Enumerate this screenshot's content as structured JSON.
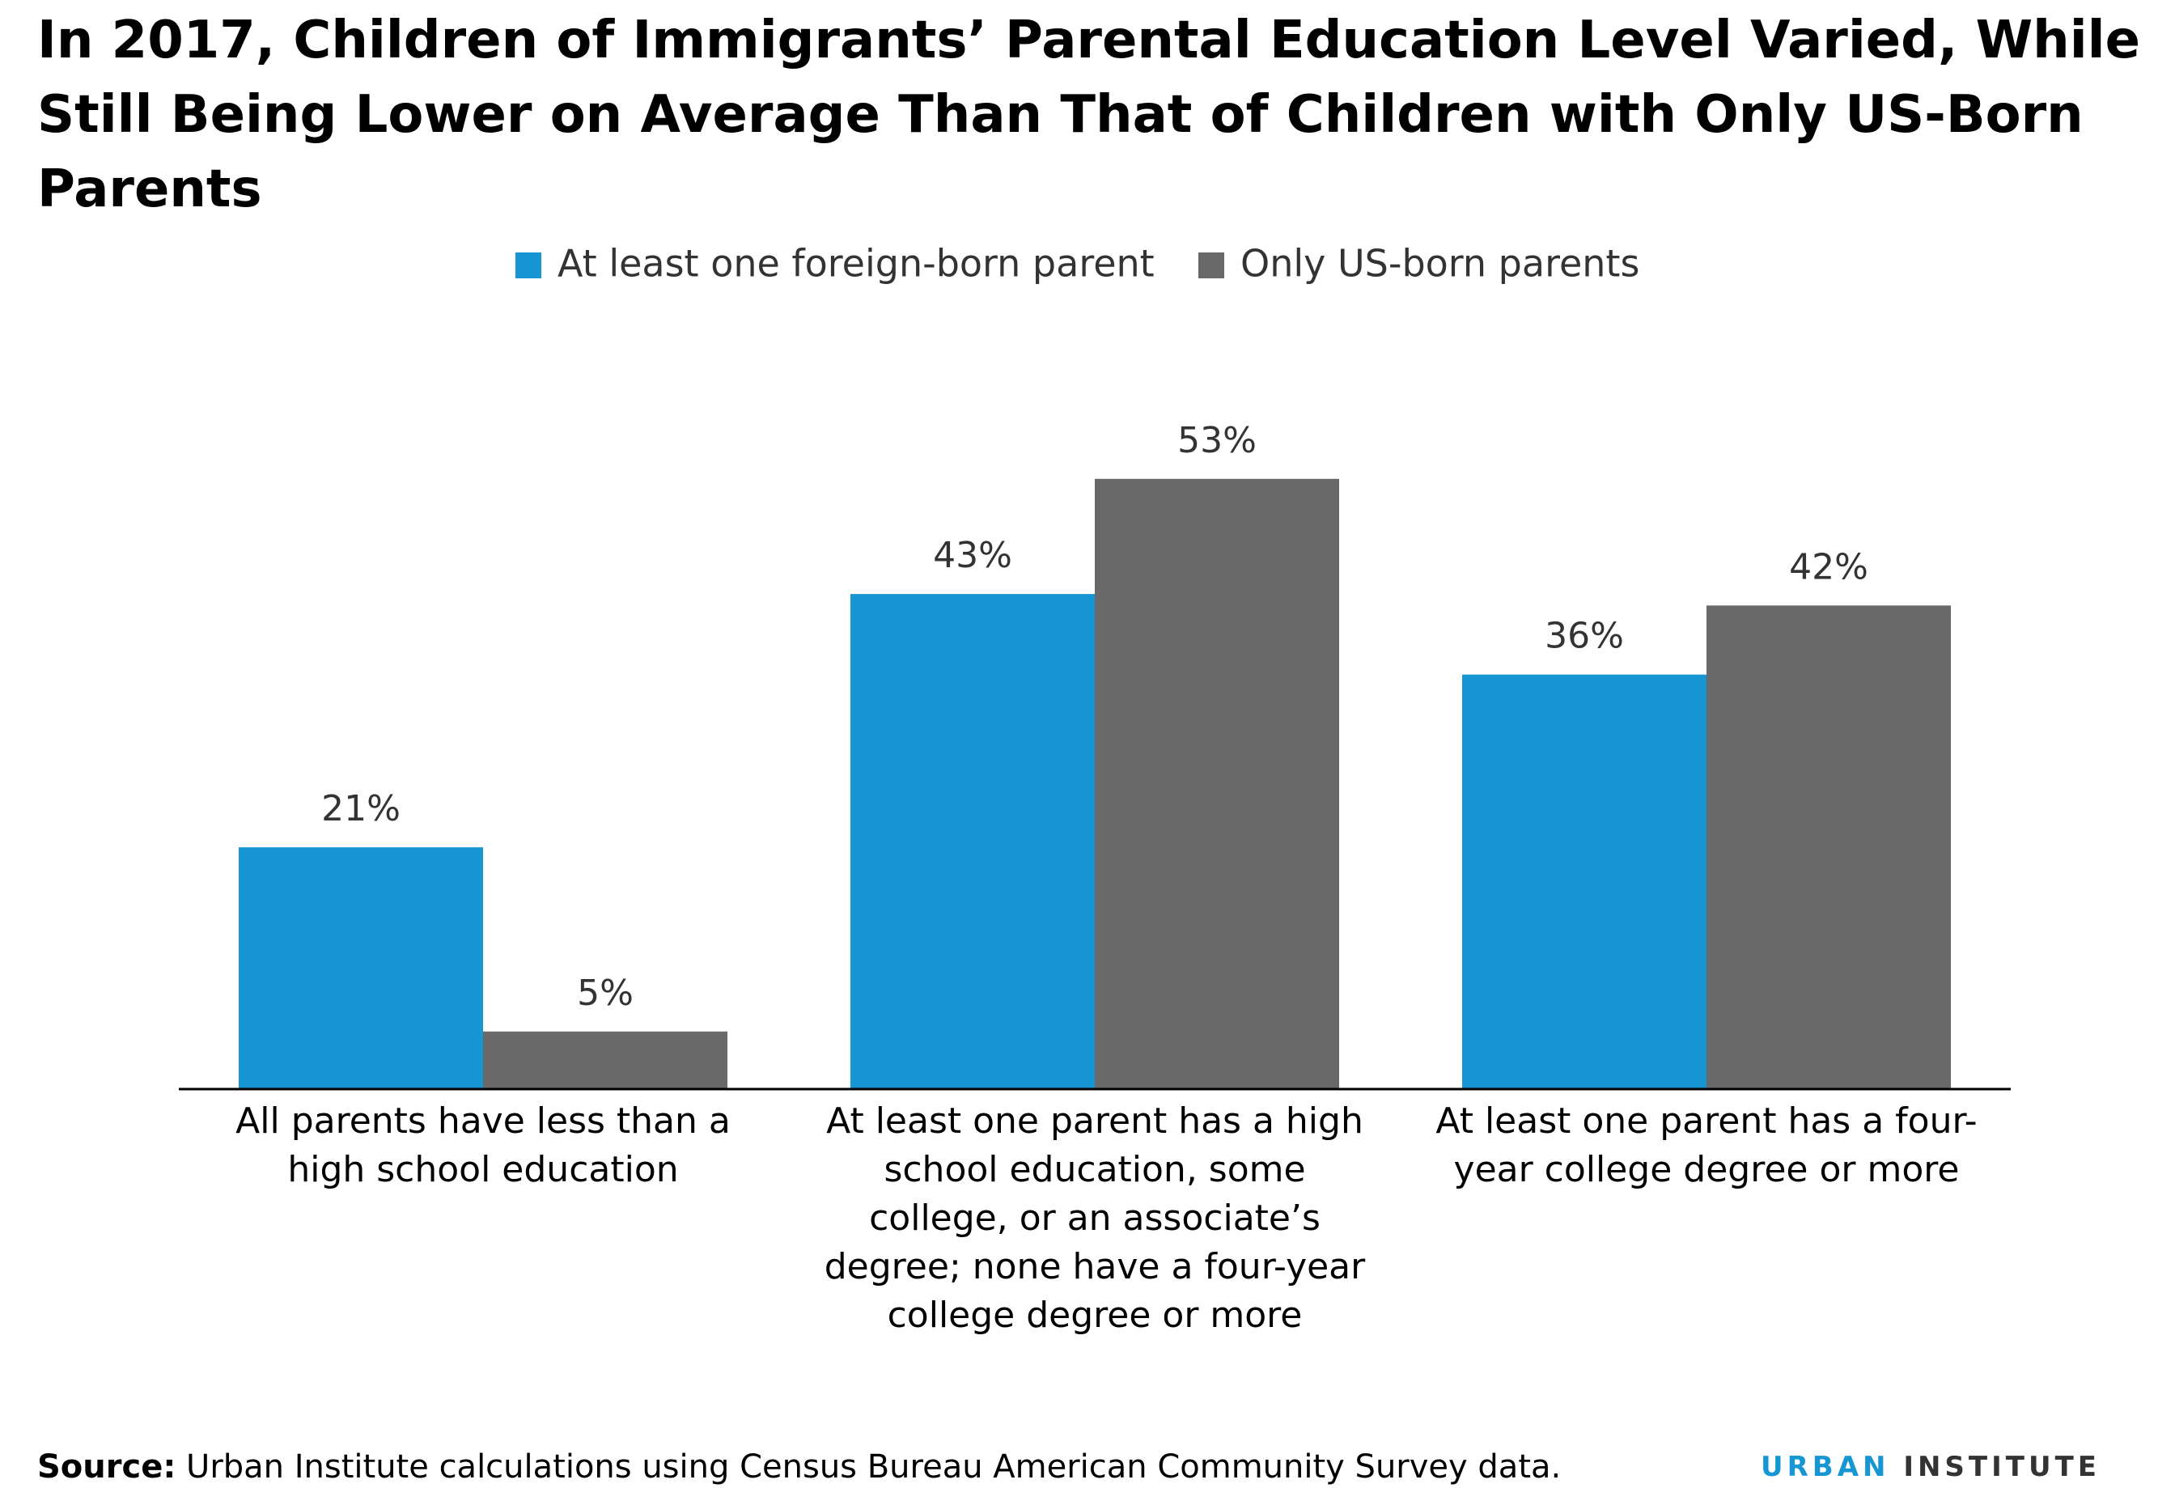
{
  "chart_data": {
    "type": "bar",
    "title": "In 2017, Children of Immigrants’ Parental Education Level Varied, While Still Being Lower on Average Than That of Children with Only US-Born Parents",
    "categories": [
      "All parents have less than a high school education",
      "At least one parent has a high school education, some college, or an associate’s degree; none have a four-year college degree or more",
      "At least one parent has a four-year college degree or more"
    ],
    "series": [
      {
        "name": "At least one foreign-born parent",
        "color": "#1696d2",
        "values": [
          21,
          43,
          36
        ],
        "value_labels": [
          "21%",
          "43%",
          "36%"
        ]
      },
      {
        "name": "Only US-born parents",
        "color": "#696969",
        "values": [
          5,
          53,
          42
        ],
        "value_labels": [
          "5%",
          "53%",
          "42%"
        ]
      }
    ],
    "source_label": "Source:",
    "source_text": "Urban Institute calculations using Census Bureau American Community Survey data.",
    "logo": [
      "URBAN",
      "INSTITUTE"
    ]
  }
}
